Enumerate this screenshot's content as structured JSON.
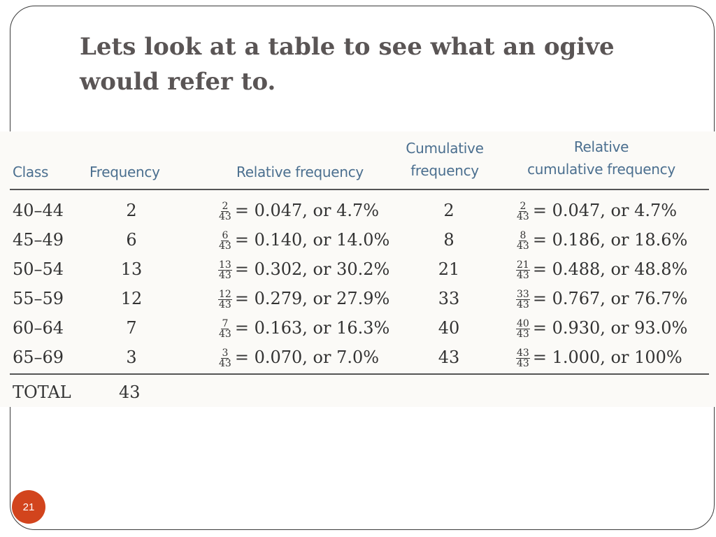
{
  "slide": {
    "title": "Lets look at a table to see what an ogive would refer to.",
    "page_number": "21"
  },
  "table": {
    "headers": {
      "class": "Class",
      "frequency": "Frequency",
      "relative_frequency": "Relative frequency",
      "cumulative_frequency_line1": "Cumulative",
      "cumulative_frequency_line2": "frequency",
      "relative_cumulative_line1": "Relative",
      "relative_cumulative_line2": "cumulative frequency"
    },
    "rows": [
      {
        "class": "40–44",
        "frequency": "2",
        "rf_num": "2",
        "rf_den": "43",
        "rf_text": "= 0.047, or 4.7%",
        "cumulative": "2",
        "rcf_num": "2",
        "rcf_den": "43",
        "rcf_text": "= 0.047, or 4.7%"
      },
      {
        "class": "45–49",
        "frequency": "6",
        "rf_num": "6",
        "rf_den": "43",
        "rf_text": "= 0.140, or 14.0%",
        "cumulative": "8",
        "rcf_num": "8",
        "rcf_den": "43",
        "rcf_text": "= 0.186, or 18.6%"
      },
      {
        "class": "50–54",
        "frequency": "13",
        "rf_num": "13",
        "rf_den": "43",
        "rf_text": "= 0.302, or 30.2%",
        "cumulative": "21",
        "rcf_num": "21",
        "rcf_den": "43",
        "rcf_text": "= 0.488, or 48.8%"
      },
      {
        "class": "55–59",
        "frequency": "12",
        "rf_num": "12",
        "rf_den": "43",
        "rf_text": "= 0.279, or 27.9%",
        "cumulative": "33",
        "rcf_num": "33",
        "rcf_den": "43",
        "rcf_text": "= 0.767, or 76.7%"
      },
      {
        "class": "60–64",
        "frequency": "7",
        "rf_num": "7",
        "rf_den": "43",
        "rf_text": "= 0.163, or 16.3%",
        "cumulative": "40",
        "rcf_num": "40",
        "rcf_den": "43",
        "rcf_text": "= 0.930, or 93.0%"
      },
      {
        "class": "65–69",
        "frequency": "3",
        "rf_num": "3",
        "rf_den": "43",
        "rf_text": "= 0.070, or 7.0%",
        "cumulative": "43",
        "rcf_num": "43",
        "rcf_den": "43",
        "rcf_text": "= 1.000, or 100%"
      }
    ],
    "total": {
      "label": "TOTAL",
      "value": "43"
    }
  },
  "colors": {
    "title": "#5a5555",
    "header_text": "#4b6f8f",
    "badge": "#d2441d"
  }
}
